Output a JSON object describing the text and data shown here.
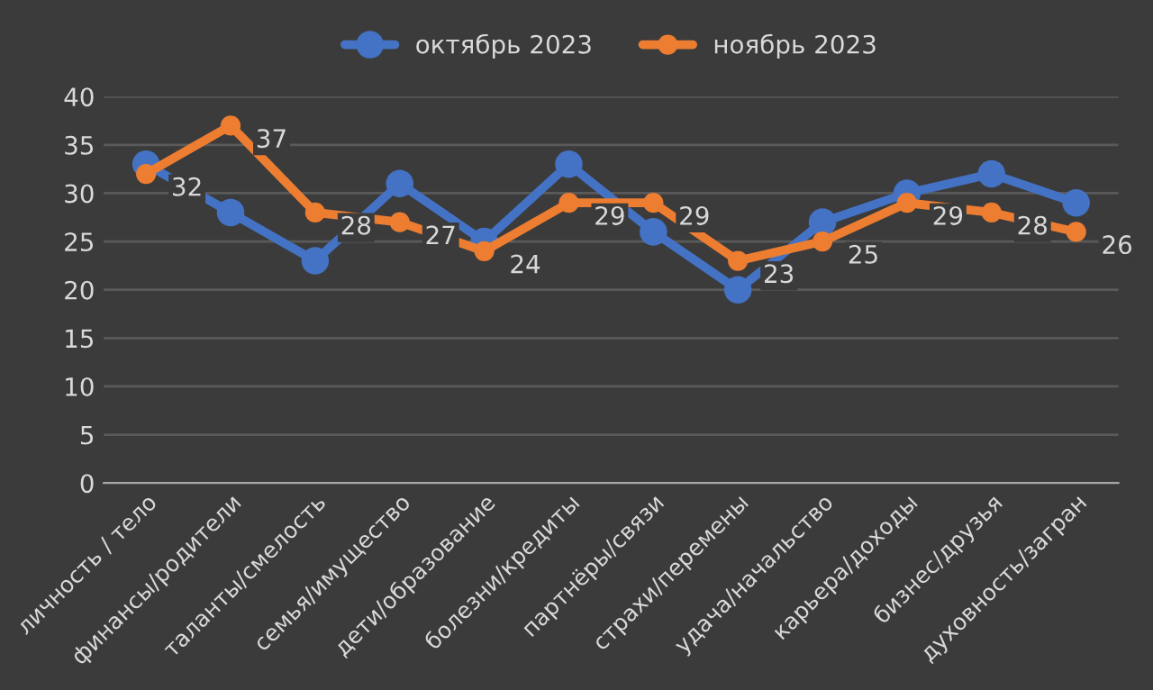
{
  "chart_data": {
    "type": "line",
    "categories": [
      "личность / тело",
      "финансы/родители",
      "таланты/смелость",
      "семья/имущество",
      "дети/образование",
      "болезни/кредиты",
      "партнёры/связи",
      "страхи/перемены",
      "удача/начальство",
      "карьера/доходы",
      "бизнес/друзья",
      "духовность/загран"
    ],
    "series": [
      {
        "name": "октябрь 2023",
        "color": "#4472c4",
        "values": [
          33,
          28,
          23,
          31,
          25,
          33,
          26,
          20,
          27,
          30,
          32,
          29
        ]
      },
      {
        "name": "ноябрь 2023",
        "color": "#ed7d31",
        "values": [
          32,
          37,
          28,
          27,
          24,
          29,
          29,
          23,
          25,
          29,
          28,
          26
        ],
        "value_labels": [
          "32",
          "37",
          "28",
          "27",
          "24",
          "29",
          "29",
          "23",
          "25",
          "29",
          "28",
          "26"
        ]
      }
    ],
    "ylim": [
      0,
      40
    ],
    "yticks": [
      0,
      5,
      10,
      15,
      20,
      25,
      30,
      35,
      40
    ],
    "grid": "y",
    "legend": "top",
    "marker": "circle",
    "line_style": "solid"
  }
}
